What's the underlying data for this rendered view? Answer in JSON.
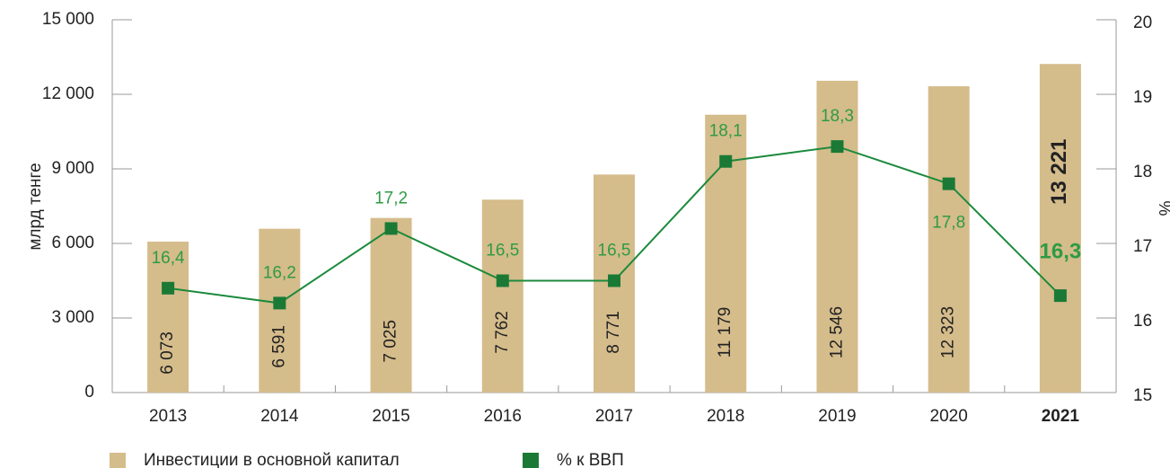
{
  "chart_data": {
    "type": "bar_line",
    "categories": [
      "2013",
      "2014",
      "2015",
      "2016",
      "2017",
      "2018",
      "2019",
      "2020",
      "2021"
    ],
    "series": [
      {
        "name": "Инвестиции в основной капитал",
        "color": "#d5bc8b",
        "type": "bar",
        "values": [
          6073,
          6591,
          7025,
          7762,
          8771,
          11179,
          12546,
          12323,
          13221
        ],
        "value_labels": [
          "6 073",
          "6 591",
          "7 025",
          "7 762",
          "8 771",
          "11 179",
          "12 546",
          "12 323",
          "13 221"
        ]
      },
      {
        "name": "% к ВВП",
        "color": "#1b8a3c",
        "type": "line",
        "axis": "y2",
        "values": [
          16.4,
          16.2,
          17.2,
          16.5,
          16.5,
          18.1,
          18.3,
          17.8,
          16.3
        ],
        "value_labels": [
          "16,4",
          "16,2",
          "17,2",
          "16,5",
          "16,5",
          "18,1",
          "18,3",
          "17,8",
          "16,3"
        ]
      }
    ],
    "ylabel": "млрд тенге",
    "y2label": "%",
    "ylim": [
      0,
      15000
    ],
    "yticks": [
      0,
      {
        "value": 3000,
        "label": "3 000"
      },
      {
        "value": 6000,
        "label": "6 000"
      },
      {
        "value": 9000,
        "label": "9 000"
      },
      {
        "value": 12000,
        "label": "12 000"
      },
      {
        "value": 15000,
        "label": "15 000"
      }
    ],
    "y2lim": [
      15,
      20
    ],
    "y2ticks": [
      15,
      16,
      17,
      18,
      19,
      20
    ],
    "legend": "bottom"
  }
}
